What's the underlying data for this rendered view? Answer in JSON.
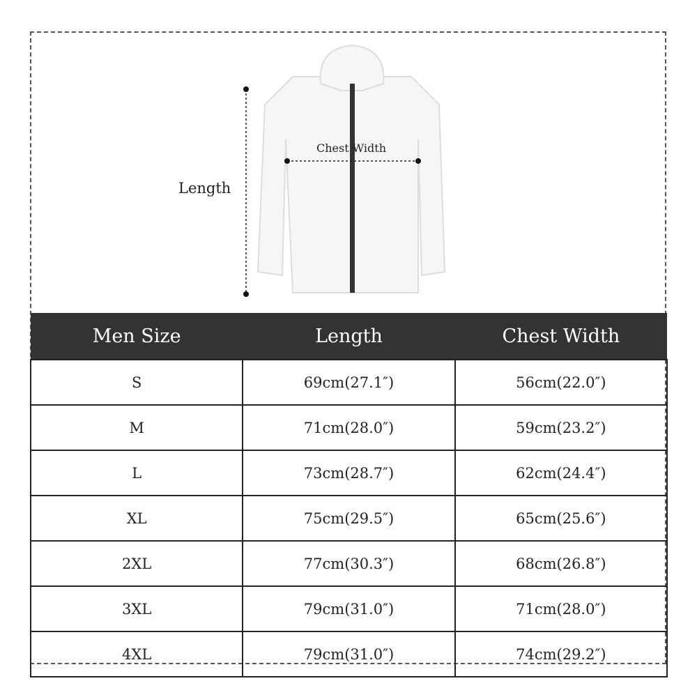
{
  "diagram": {
    "length_label": "Length",
    "chest_label": "Chest Width"
  },
  "table": {
    "headers": [
      "Men Size",
      "Length",
      "Chest Width"
    ],
    "rows": [
      [
        "S",
        "69cm(27.1″)",
        "56cm(22.0″)"
      ],
      [
        "M",
        "71cm(28.0″)",
        "59cm(23.2″)"
      ],
      [
        "L",
        "73cm(28.7″)",
        "62cm(24.4″)"
      ],
      [
        "XL",
        "75cm(29.5″)",
        "65cm(25.6″)"
      ],
      [
        "2XL",
        "77cm(30.3″)",
        "68cm(26.8″)"
      ],
      [
        "3XL",
        "79cm(31.0″)",
        "71cm(28.0″)"
      ],
      [
        "4XL",
        "79cm(31.0″)",
        "74cm(29.2″)"
      ]
    ]
  }
}
